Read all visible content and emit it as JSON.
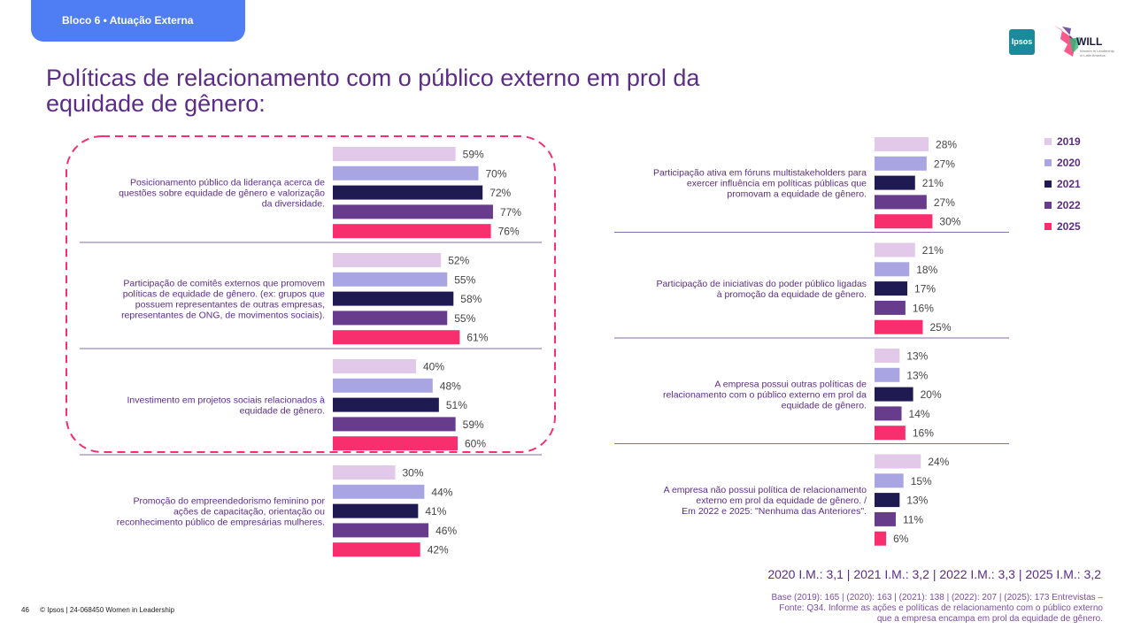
{
  "header": {
    "tab_label": "Bloco 6 • Atuação Externa"
  },
  "title": "Políticas de relacionamento com o público externo em prol da equidade de gênero:",
  "logos": {
    "ipsos": "Ipsos",
    "will": "WILL",
    "will_sub": "Women in Leadership in Latin America"
  },
  "legend": [
    {
      "label": "2019",
      "color": "#e2c9ea"
    },
    {
      "label": "2020",
      "color": "#a9a5e3"
    },
    {
      "label": "2021",
      "color": "#201a52"
    },
    {
      "label": "2022",
      "color": "#673c8c"
    },
    {
      "label": "2025",
      "color": "#f72f6e"
    }
  ],
  "chart_data": {
    "type": "bar",
    "orientation": "horizontal",
    "unit": "%",
    "series_names": [
      "2019",
      "2020",
      "2021",
      "2022",
      "2025"
    ],
    "colors": [
      "#e2c9ea",
      "#a9a5e3",
      "#201a52",
      "#673c8c",
      "#f72f6e"
    ],
    "left_panel": [
      {
        "label": [
          "Posicionamento público da liderança acerca de",
          "questões sobre equidade de gênero e valorização",
          "da diversidade."
        ],
        "values": [
          59,
          70,
          72,
          77,
          76
        ]
      },
      {
        "label": [
          "Participação de comitês externos que promovem",
          "políticas de equidade de gênero. (ex: grupos que",
          "possuem representantes de outras empresas,",
          "representantes de ONG, de movimentos sociais)."
        ],
        "values": [
          52,
          55,
          58,
          55,
          61
        ]
      },
      {
        "label": [
          "Investimento em projetos sociais relacionados à",
          "equidade de gênero."
        ],
        "values": [
          40,
          48,
          51,
          59,
          60
        ]
      },
      {
        "label": [
          "Promoção do empreendedorismo feminino por",
          "ações de capacitação, orientação ou",
          "reconhecimento público de empresárias mulheres."
        ],
        "values": [
          30,
          44,
          41,
          46,
          42
        ]
      }
    ],
    "right_panel": [
      {
        "label": [
          "Participação ativa em fóruns multistakeholders para",
          "exercer influência em políticas públicas que",
          "promovam a equidade de gênero."
        ],
        "values": [
          28,
          27,
          21,
          27,
          30
        ]
      },
      {
        "label": [
          "Participação de iniciativas do poder público ligadas",
          "à promoção da equidade de gênero."
        ],
        "values": [
          21,
          18,
          17,
          16,
          25
        ]
      },
      {
        "label": [
          "A empresa possui outras políticas de",
          "relacionamento com o público externo em prol da",
          "equidade de gênero."
        ],
        "values": [
          13,
          13,
          20,
          14,
          16
        ]
      },
      {
        "label": [
          "A empresa não possui política de relacionamento",
          "externo em prol da equidade de gênero. /",
          "Em 2022 e 2025: \"Nenhuma das Anteriores\"."
        ],
        "values": [
          24,
          15,
          13,
          11,
          6
        ]
      }
    ]
  },
  "im_line": "2020 I.M.: 3,1 | 2021 I.M.: 3,2 | 2022 I.M.: 3,3 | 2025 I.M.: 3,2",
  "base_note": [
    "Base (2019): 165 | (2020): 163 | (2021): 138 | (2022): 207 | (2025): 173 Entrevistas –",
    "Fonte: Q34. Informe as ações e políticas de relacionamento com o público externo",
    "que a empresa encampa em prol da equidade de gênero."
  ],
  "footer": {
    "page": "46",
    "copyright": "© Ipsos | 24-068450 Women in Leadership"
  }
}
